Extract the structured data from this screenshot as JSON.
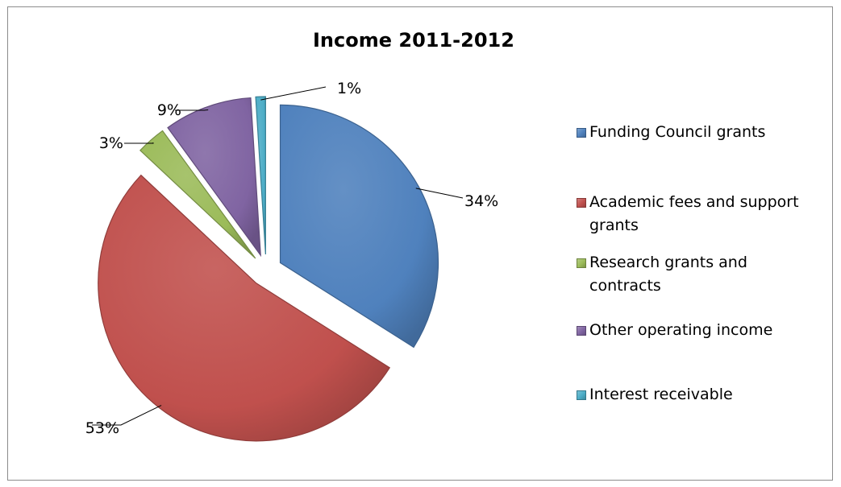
{
  "chart_data": {
    "type": "pie",
    "title": "Income 2011-2012",
    "categories": [
      "Funding Council grants",
      "Academic fees and support grants",
      "Research grants and contracts",
      "Other operating income",
      "Interest receivable"
    ],
    "values": [
      34,
      53,
      3,
      9,
      1
    ],
    "value_labels": [
      "34%",
      "53%",
      "3%",
      "9%",
      "1%"
    ],
    "colors": [
      "#4f81bd",
      "#c0504d",
      "#9bbb59",
      "#8064a2",
      "#4bacc6"
    ],
    "exploded": true,
    "legend_position": "right"
  }
}
